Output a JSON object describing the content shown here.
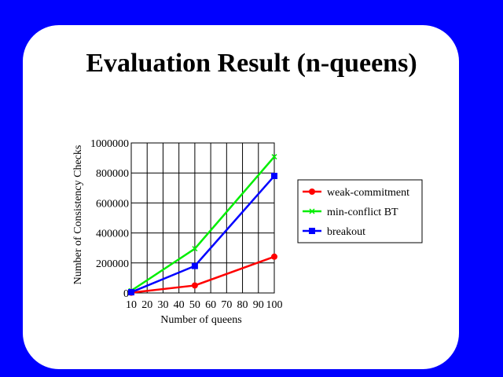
{
  "slide": {
    "title": "Evaluation Result (n-queens)",
    "background_color": "#0000ff",
    "panel_color": "#ffffff"
  },
  "chart_data": {
    "type": "line",
    "xlabel": "Number of queens",
    "ylabel": "Number of Consistency Checks",
    "xlim": [
      10,
      100
    ],
    "ylim": [
      0,
      1000000
    ],
    "x_ticks": [
      10,
      20,
      30,
      40,
      50,
      60,
      70,
      80,
      90,
      100
    ],
    "y_ticks": [
      0,
      200000,
      400000,
      600000,
      800000,
      1000000
    ],
    "grid": true,
    "legend_position": "right",
    "series": [
      {
        "name": "weak-commitment",
        "color": "#ff0000",
        "marker": "circle",
        "x": [
          10,
          50,
          100
        ],
        "values": [
          2000,
          50000,
          242000
        ]
      },
      {
        "name": "min-conflict BT",
        "color": "#00ee00",
        "marker": "x",
        "x": [
          10,
          50,
          100
        ],
        "values": [
          15000,
          295000,
          908000
        ]
      },
      {
        "name": "breakout",
        "color": "#0000ff",
        "marker": "square",
        "x": [
          10,
          50,
          100
        ],
        "values": [
          5000,
          180000,
          780000
        ]
      }
    ]
  }
}
